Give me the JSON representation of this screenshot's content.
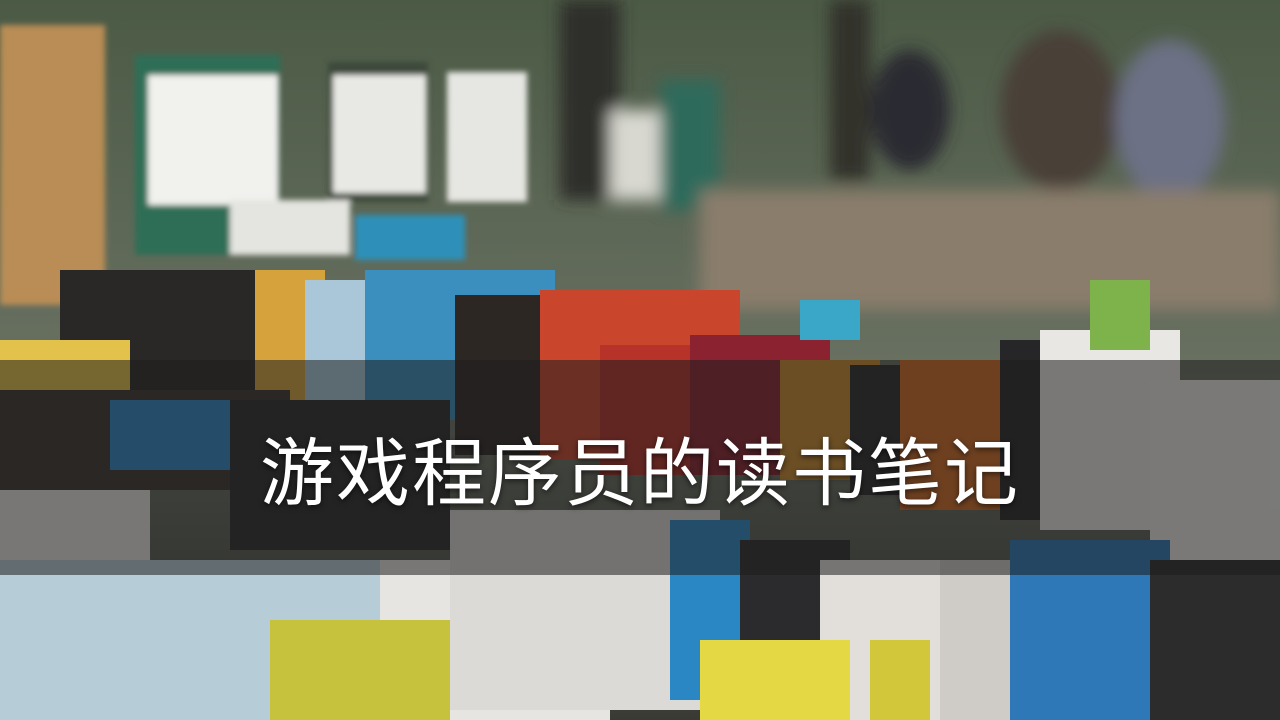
{
  "title": "游戏程序员的读书笔记"
}
